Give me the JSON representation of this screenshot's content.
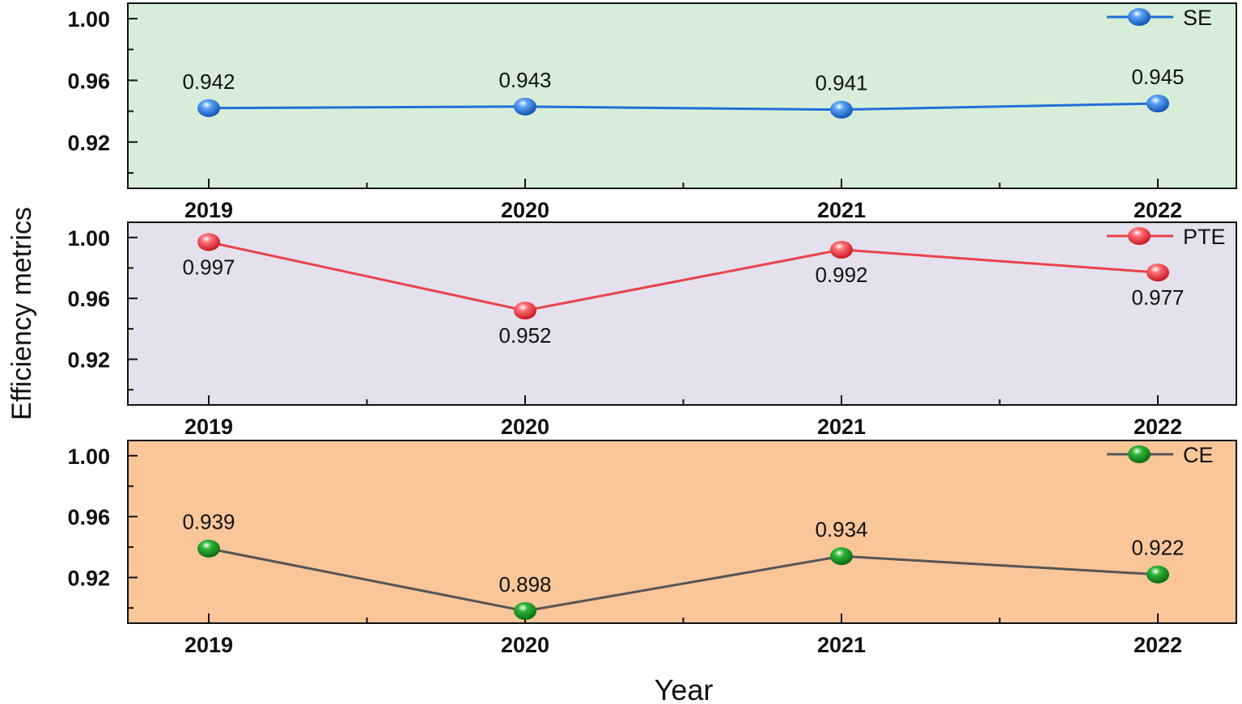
{
  "chart_data": {
    "type": "line",
    "xlabel": "Year",
    "ylabel": "Efficiency metrics",
    "categories": [
      "2019",
      "2020",
      "2021",
      "2022"
    ],
    "grid": false,
    "panels": [
      {
        "series_name": "SE",
        "values": [
          0.942,
          0.943,
          0.941,
          0.945
        ],
        "labels": [
          "0.942",
          "0.943",
          "0.941",
          "0.945"
        ],
        "label_position": [
          "above",
          "above",
          "above",
          "above"
        ],
        "ylim": [
          0.89,
          1.01
        ],
        "yticks": [
          "1.00",
          "0.96",
          "0.92"
        ],
        "ytick_values": [
          1.0,
          0.96,
          0.92
        ],
        "line_color": "#1f6fd6",
        "marker_color": "#2a7be4",
        "background": "#d8edd9",
        "legend_position": "top-right"
      },
      {
        "series_name": "PTE",
        "values": [
          0.997,
          0.952,
          0.992,
          0.977
        ],
        "labels": [
          "0.997",
          "0.952",
          "0.992",
          "0.977"
        ],
        "label_position": [
          "below",
          "below",
          "below",
          "below"
        ],
        "ylim": [
          0.89,
          1.01
        ],
        "yticks": [
          "1.00",
          "0.96",
          "0.92"
        ],
        "ytick_values": [
          1.0,
          0.96,
          0.92
        ],
        "line_color": "#e8434b",
        "marker_color": "#ef3f4a",
        "background": "#e5e0ed",
        "legend_position": "top-right"
      },
      {
        "series_name": "CE",
        "values": [
          0.939,
          0.898,
          0.934,
          0.922
        ],
        "labels": [
          "0.939",
          "0.898",
          "0.934",
          "0.922"
        ],
        "label_position": [
          "above",
          "above",
          "above",
          "above"
        ],
        "ylim": [
          0.89,
          1.01
        ],
        "yticks": [
          "1.00",
          "0.96",
          "0.92"
        ],
        "ytick_values": [
          1.0,
          0.96,
          0.92
        ],
        "line_color": "#555555",
        "marker_color": "#1a9a22",
        "background": "#f9c69a",
        "legend_position": "top-right"
      }
    ]
  }
}
